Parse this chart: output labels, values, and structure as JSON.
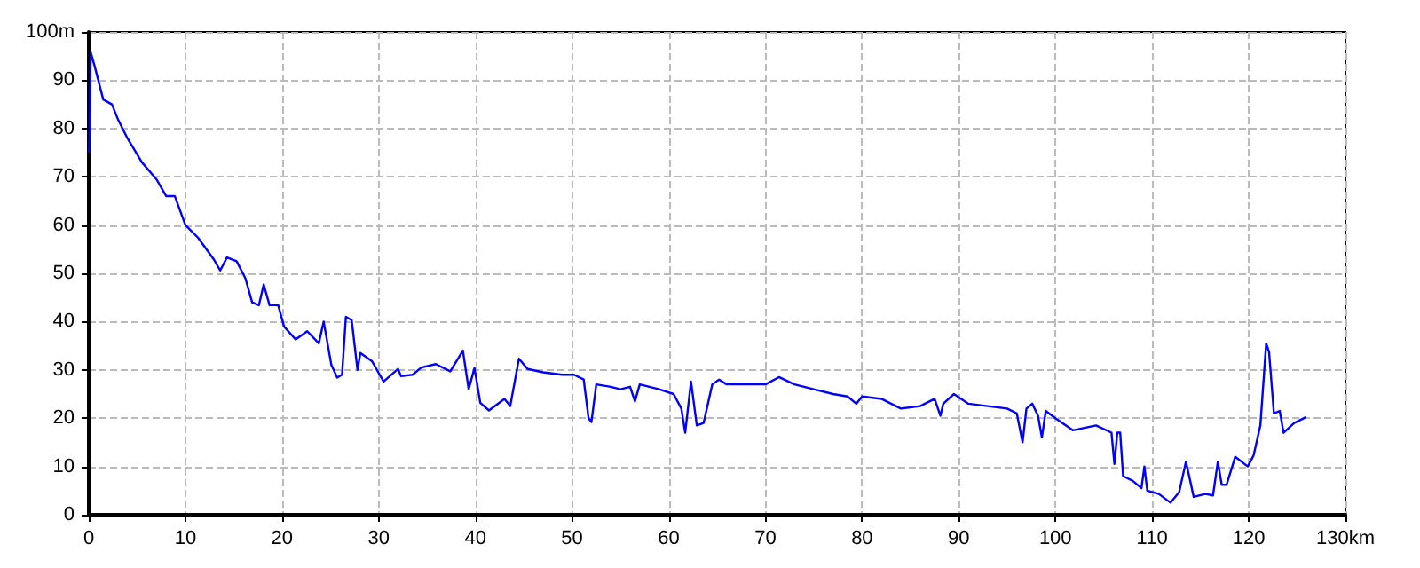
{
  "chart_data": {
    "type": "line",
    "color": "#0000ff",
    "grid": true,
    "marker": "none",
    "line_style": "solid",
    "x": [
      0,
      0.1,
      0.2,
      0.6,
      1.5,
      2.4,
      3.0,
      4.0,
      5.5,
      7.0,
      8.0,
      8.9,
      10.0,
      11.3,
      12.9,
      13.6,
      14.3,
      15.3,
      16.2,
      16.9,
      17.6,
      18.1,
      18.7,
      19.6,
      20.2,
      21.4,
      22.6,
      23.8,
      24.3,
      25.1,
      25.7,
      26.2,
      26.6,
      27.2,
      27.8,
      28.1,
      29.3,
      30.5,
      32.0,
      32.3,
      33.5,
      34.4,
      35.9,
      37.4,
      38.7,
      39.3,
      39.9,
      40.5,
      41.4,
      43.0,
      43.6,
      44.5,
      45.4,
      47,
      49,
      50.2,
      51.2,
      51.7,
      52.0,
      52.5,
      54,
      55,
      56,
      56.5,
      57,
      59,
      60.5,
      61.3,
      61.7,
      62.3,
      62.9,
      63.6,
      64.5,
      65.2,
      66,
      68,
      70,
      71.4,
      73,
      75,
      77,
      78.5,
      79.4,
      80,
      82,
      84,
      86,
      87.5,
      88.1,
      88.4,
      89.5,
      91,
      93,
      95,
      96,
      96.6,
      97.0,
      97.6,
      98.2,
      98.6,
      99.0,
      100.0,
      101.8,
      104.2,
      105.8,
      106.1,
      106.4,
      106.7,
      107.0,
      108.0,
      108.9,
      109.2,
      109.5,
      110.7,
      111.9,
      112.8,
      113.5,
      113.9,
      114.3,
      115.5,
      116.3,
      116.8,
      117.2,
      117.7,
      118.6,
      119.9,
      120.5,
      121.2,
      121.8,
      122.1,
      122.6,
      123.2,
      123.6,
      124.7,
      125.9
    ],
    "values": [
      75,
      79.7,
      95.8,
      93,
      86,
      85,
      82,
      78,
      73,
      69.5,
      66,
      66,
      60,
      57.4,
      53,
      50.6,
      53.3,
      52.5,
      49,
      44,
      43.4,
      47.7,
      43.4,
      43.4,
      39,
      36.3,
      38,
      35.5,
      40,
      31,
      28.4,
      29,
      41,
      40.3,
      30,
      33.5,
      31.8,
      27.6,
      30.2,
      28.7,
      29,
      30.5,
      31.2,
      29.7,
      34,
      26,
      30.4,
      23.2,
      21.6,
      24,
      22.5,
      32.3,
      30.2,
      29.5,
      29,
      29,
      28,
      20,
      19.2,
      27,
      26.5,
      26,
      26.5,
      23.5,
      27,
      26,
      25,
      22,
      17,
      27.6,
      18.5,
      19,
      27,
      28,
      27,
      27,
      27,
      28.5,
      27,
      26,
      25,
      24.5,
      23,
      24.5,
      24,
      22,
      22.5,
      24,
      20.5,
      23,
      25,
      23,
      22.5,
      22,
      21,
      15,
      22,
      23,
      20.5,
      16,
      21.5,
      20,
      17.5,
      18.5,
      17,
      10.5,
      17,
      17,
      8,
      7,
      5.5,
      10,
      5,
      4.3,
      2.5,
      4.7,
      11,
      7.4,
      3.7,
      4.3,
      4,
      11,
      6.2,
      6.2,
      12,
      10,
      12.3,
      18.5,
      35.5,
      33.7,
      21,
      21.5,
      17,
      19,
      20.2
    ],
    "xlim": [
      0,
      130
    ],
    "xticks": [
      0,
      10,
      20,
      30,
      40,
      50,
      60,
      70,
      80,
      90,
      100,
      110,
      120,
      {
        "value": 130,
        "label": "130km"
      }
    ],
    "ylim": [
      0,
      100
    ],
    "yticks": [
      0,
      10,
      20,
      30,
      40,
      50,
      60,
      70,
      80,
      90,
      {
        "value": 100,
        "label": "100m"
      }
    ]
  }
}
